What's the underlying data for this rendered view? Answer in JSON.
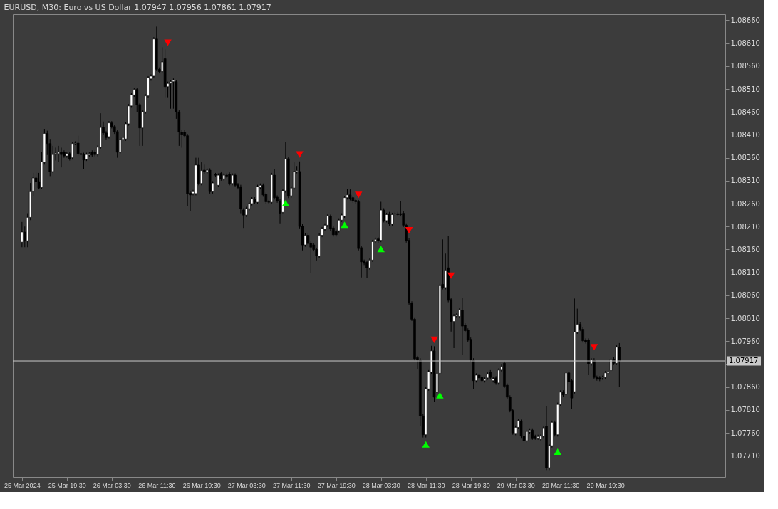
{
  "chart_data": {
    "type": "candlestick",
    "title": "EURUSD, M30:  Euro vs US Dollar  1.07947 1.07956 1.07861 1.07917",
    "x": [
      "2024-03-25T11:30",
      "2024-03-25T12:00",
      "2024-03-25T12:30",
      "2024-03-25T13:00",
      "2024-03-25T13:30",
      "2024-03-25T14:00",
      "2024-03-25T14:30",
      "2024-03-25T15:00",
      "2024-03-25T15:30",
      "2024-03-25T16:00",
      "2024-03-25T16:30",
      "2024-03-25T17:00",
      "2024-03-25T17:30",
      "2024-03-25T18:00",
      "2024-03-25T18:30",
      "2024-03-25T19:00",
      "2024-03-25T19:30",
      "2024-03-25T20:00",
      "2024-03-25T20:30",
      "2024-03-25T21:00",
      "2024-03-25T21:30",
      "2024-03-25T22:00",
      "2024-03-25T22:30",
      "2024-03-25T23:00",
      "2024-03-25T23:30",
      "2024-03-26T00:00",
      "2024-03-26T00:30",
      "2024-03-26T01:00",
      "2024-03-26T01:30",
      "2024-03-26T02:00",
      "2024-03-26T02:30",
      "2024-03-26T03:00",
      "2024-03-26T03:30",
      "2024-03-26T04:00",
      "2024-03-26T04:30",
      "2024-03-26T05:00",
      "2024-03-26T05:30",
      "2024-03-26T06:00",
      "2024-03-26T06:30",
      "2024-03-26T07:00",
      "2024-03-26T07:30",
      "2024-03-26T08:00",
      "2024-03-26T08:30",
      "2024-03-26T09:00",
      "2024-03-26T09:30",
      "2024-03-26T10:00",
      "2024-03-26T10:30",
      "2024-03-26T11:00",
      "2024-03-26T11:30",
      "2024-03-26T12:00",
      "2024-03-26T12:30",
      "2024-03-26T13:00",
      "2024-03-26T13:30",
      "2024-03-26T14:00",
      "2024-03-26T14:30",
      "2024-03-26T15:00",
      "2024-03-26T15:30",
      "2024-03-26T16:00",
      "2024-03-26T16:30",
      "2024-03-26T17:00",
      "2024-03-26T17:30",
      "2024-03-26T18:00",
      "2024-03-26T18:30",
      "2024-03-26T19:00",
      "2024-03-26T19:30",
      "2024-03-26T20:00",
      "2024-03-26T20:30",
      "2024-03-26T21:00",
      "2024-03-26T21:30",
      "2024-03-26T22:00",
      "2024-03-26T22:30",
      "2024-03-26T23:00",
      "2024-03-26T23:30",
      "2024-03-27T00:00",
      "2024-03-27T00:30",
      "2024-03-27T01:00",
      "2024-03-27T01:30",
      "2024-03-27T02:00",
      "2024-03-27T02:30",
      "2024-03-27T03:00",
      "2024-03-27T03:30",
      "2024-03-27T04:00",
      "2024-03-27T04:30",
      "2024-03-27T05:00",
      "2024-03-27T05:30",
      "2024-03-27T06:00",
      "2024-03-27T06:30",
      "2024-03-27T07:00",
      "2024-03-27T07:30",
      "2024-03-27T08:00",
      "2024-03-27T08:30",
      "2024-03-27T09:00",
      "2024-03-27T09:30",
      "2024-03-27T10:00",
      "2024-03-27T10:30",
      "2024-03-27T11:00",
      "2024-03-27T11:30",
      "2024-03-27T12:00",
      "2024-03-27T12:30",
      "2024-03-27T13:00",
      "2024-03-27T13:30",
      "2024-03-27T14:00",
      "2024-03-27T14:30",
      "2024-03-27T15:00",
      "2024-03-27T15:30",
      "2024-03-27T16:00",
      "2024-03-27T16:30",
      "2024-03-27T17:00",
      "2024-03-27T17:30",
      "2024-03-27T18:00",
      "2024-03-27T18:30",
      "2024-03-27T19:00",
      "2024-03-27T19:30",
      "2024-03-27T20:00",
      "2024-03-27T20:30",
      "2024-03-27T21:00",
      "2024-03-27T21:30",
      "2024-03-27T22:00",
      "2024-03-27T22:30",
      "2024-03-27T23:00",
      "2024-03-27T23:30",
      "2024-03-28T00:00",
      "2024-03-28T00:30",
      "2024-03-28T01:00",
      "2024-03-28T01:30",
      "2024-03-28T02:00",
      "2024-03-28T02:30",
      "2024-03-28T03:00",
      "2024-03-28T03:30",
      "2024-03-28T04:00",
      "2024-03-28T04:30",
      "2024-03-28T05:00",
      "2024-03-28T05:30",
      "2024-03-28T06:00",
      "2024-03-28T06:30",
      "2024-03-28T07:00",
      "2024-03-28T07:30",
      "2024-03-28T08:00",
      "2024-03-28T08:30",
      "2024-03-28T09:00",
      "2024-03-28T09:30",
      "2024-03-28T10:00",
      "2024-03-28T10:30",
      "2024-03-28T11:00",
      "2024-03-28T11:30",
      "2024-03-28T12:00",
      "2024-03-28T12:30",
      "2024-03-28T13:00",
      "2024-03-28T13:30",
      "2024-03-28T14:00",
      "2024-03-28T14:30",
      "2024-03-28T15:00",
      "2024-03-28T15:30",
      "2024-03-28T16:00",
      "2024-03-28T16:30",
      "2024-03-28T17:00",
      "2024-03-28T17:30",
      "2024-03-28T18:00",
      "2024-03-28T18:30",
      "2024-03-28T19:00",
      "2024-03-28T19:30",
      "2024-03-28T20:00",
      "2024-03-28T20:30",
      "2024-03-28T21:00",
      "2024-03-28T21:30",
      "2024-03-28T22:00",
      "2024-03-28T22:30",
      "2024-03-28T23:00",
      "2024-03-28T23:30",
      "2024-03-29T00:00",
      "2024-03-29T00:30",
      "2024-03-29T01:00",
      "2024-03-29T01:30",
      "2024-03-29T02:00",
      "2024-03-29T02:30",
      "2024-03-29T03:00",
      "2024-03-29T03:30",
      "2024-03-29T04:00",
      "2024-03-29T04:30",
      "2024-03-29T05:00",
      "2024-03-29T05:30",
      "2024-03-29T06:00",
      "2024-03-29T06:30",
      "2024-03-29T07:00",
      "2024-03-29T07:30",
      "2024-03-29T08:00",
      "2024-03-29T08:30",
      "2024-03-29T09:00",
      "2024-03-29T09:30",
      "2024-03-29T10:00",
      "2024-03-29T10:30",
      "2024-03-29T11:00",
      "2024-03-29T11:30",
      "2024-03-29T12:00",
      "2024-03-29T12:30",
      "2024-03-29T13:00",
      "2024-03-29T13:30",
      "2024-03-29T14:00",
      "2024-03-29T14:30",
      "2024-03-29T15:00",
      "2024-03-29T15:30",
      "2024-03-29T16:00",
      "2024-03-29T16:30",
      "2024-03-29T17:00",
      "2024-03-29T17:30",
      "2024-03-29T18:00",
      "2024-03-29T18:30",
      "2024-03-29T19:00",
      "2024-03-29T19:30",
      "2024-03-29T20:00",
      "2024-03-29T20:30",
      "2024-03-29T21:00",
      "2024-03-29T21:30",
      "2024-03-29T22:00"
    ],
    "ohlc": [
      [
        1.08176,
        1.0822,
        1.08165,
        1.08198
      ],
      [
        1.08198,
        1.0821,
        1.08165,
        1.0818
      ],
      [
        1.08179,
        1.08239,
        1.08165,
        1.0823
      ],
      [
        1.0823,
        1.08305,
        1.08224,
        1.08286
      ],
      [
        1.08286,
        1.08327,
        1.08276,
        1.08316
      ],
      [
        1.08316,
        1.0833,
        1.08295,
        1.08308
      ],
      [
        1.08308,
        1.08327,
        1.08291,
        1.08294
      ],
      [
        1.08295,
        1.08372,
        1.08292,
        1.08351
      ],
      [
        1.0835,
        1.08423,
        1.08345,
        1.08413
      ],
      [
        1.08413,
        1.08419,
        1.08366,
        1.08391
      ],
      [
        1.08391,
        1.08401,
        1.0832,
        1.0833
      ],
      [
        1.0833,
        1.08386,
        1.08327,
        1.08367
      ],
      [
        1.08367,
        1.08382,
        1.08354,
        1.0837
      ],
      [
        1.08369,
        1.08386,
        1.08351,
        1.08372
      ],
      [
        1.08372,
        1.08382,
        1.08339,
        1.08367
      ],
      [
        1.08372,
        1.08376,
        1.0836,
        1.08364
      ],
      [
        1.08364,
        1.08373,
        1.0836,
        1.08369
      ],
      [
        1.08369,
        1.08373,
        1.08354,
        1.08358
      ],
      [
        1.0836,
        1.08394,
        1.08356,
        1.08391
      ],
      [
        1.08391,
        1.08396,
        1.08388,
        1.08392
      ],
      [
        1.08392,
        1.08408,
        1.08365,
        1.08369
      ],
      [
        1.08369,
        1.08373,
        1.08363,
        1.08367
      ],
      [
        1.08367,
        1.08371,
        1.08335,
        1.08355
      ],
      [
        1.08357,
        1.08371,
        1.08353,
        1.08367
      ],
      [
        1.08366,
        1.08373,
        1.08362,
        1.08369
      ],
      [
        1.08372,
        1.08376,
        1.08362,
        1.08366
      ],
      [
        1.08372,
        1.08376,
        1.08363,
        1.08367
      ],
      [
        1.08367,
        1.08387,
        1.08363,
        1.08383
      ],
      [
        1.08383,
        1.08457,
        1.08379,
        1.08426
      ],
      [
        1.08426,
        1.08439,
        1.0841,
        1.08414
      ],
      [
        1.08414,
        1.08418,
        1.084,
        1.08404
      ],
      [
        1.08406,
        1.0844,
        1.08402,
        1.08436
      ],
      [
        1.08436,
        1.0844,
        1.08424,
        1.08428
      ],
      [
        1.08428,
        1.08432,
        1.08412,
        1.08416
      ],
      [
        1.08417,
        1.08421,
        1.0836,
        1.08372
      ],
      [
        1.08372,
        1.08404,
        1.08368,
        1.084
      ],
      [
        1.084,
        1.08408,
        1.08396,
        1.08404
      ],
      [
        1.08401,
        1.08438,
        1.08397,
        1.08434
      ],
      [
        1.08434,
        1.08477,
        1.0843,
        1.08473
      ],
      [
        1.08473,
        1.08501,
        1.08469,
        1.08497
      ],
      [
        1.08497,
        1.08513,
        1.08493,
        1.08509
      ],
      [
        1.08509,
        1.08513,
        1.0846,
        1.08475
      ],
      [
        1.08476,
        1.0848,
        1.08386,
        1.08425
      ],
      [
        1.08425,
        1.08464,
        1.08386,
        1.0846
      ],
      [
        1.0846,
        1.08499,
        1.08456,
        1.08495
      ],
      [
        1.08495,
        1.08538,
        1.08491,
        1.08534
      ],
      [
        1.08532,
        1.08542,
        1.08528,
        1.08538
      ],
      [
        1.08538,
        1.08623,
        1.08534,
        1.08619
      ],
      [
        1.08619,
        1.08646,
        1.08549,
        1.08553
      ],
      [
        1.08553,
        1.08557,
        1.08544,
        1.08548
      ],
      [
        1.08548,
        1.08601,
        1.08544,
        1.08569
      ],
      [
        1.08576,
        1.08596,
        1.08492,
        1.08515
      ],
      [
        1.08515,
        1.08526,
        1.08492,
        1.08522
      ],
      [
        1.08522,
        1.0853,
        1.08467,
        1.08526
      ],
      [
        1.08526,
        1.08533,
        1.08467,
        1.08529
      ],
      [
        1.08526,
        1.0853,
        1.08445,
        1.0846
      ],
      [
        1.0846,
        1.08464,
        1.08386,
        1.08416
      ],
      [
        1.08416,
        1.0842,
        1.08382,
        1.08411
      ],
      [
        1.08416,
        1.0842,
        1.08404,
        1.08408
      ],
      [
        1.08408,
        1.08412,
        1.08254,
        1.08282
      ],
      [
        1.08283,
        1.08287,
        1.08244,
        1.08279
      ],
      [
        1.08282,
        1.0829,
        1.08278,
        1.08286
      ],
      [
        1.08282,
        1.0836,
        1.08278,
        1.08344
      ],
      [
        1.08344,
        1.0836,
        1.083,
        1.08304
      ],
      [
        1.08304,
        1.0835,
        1.083,
        1.08332
      ],
      [
        1.08333,
        1.08345,
        1.08325,
        1.08329
      ],
      [
        1.08329,
        1.08337,
        1.08325,
        1.08333
      ],
      [
        1.08333,
        1.08337,
        1.08282,
        1.08286
      ],
      [
        1.08286,
        1.08309,
        1.08282,
        1.08305
      ],
      [
        1.08323,
        1.08327,
        1.08318,
        1.08322
      ],
      [
        1.083,
        1.08326,
        1.08296,
        1.08322
      ],
      [
        1.08326,
        1.0833,
        1.0831,
        1.08314
      ],
      [
        1.08314,
        1.08326,
        1.0831,
        1.08322
      ],
      [
        1.08322,
        1.08326,
        1.08316,
        1.0832
      ],
      [
        1.08324,
        1.08328,
        1.083,
        1.08304
      ],
      [
        1.08304,
        1.08326,
        1.083,
        1.08322
      ],
      [
        1.08322,
        1.08326,
        1.08296,
        1.083
      ],
      [
        1.08301,
        1.08305,
        1.08291,
        1.08295
      ],
      [
        1.08297,
        1.08301,
        1.08239,
        1.08249
      ],
      [
        1.08246,
        1.0825,
        1.08207,
        1.08235
      ],
      [
        1.08235,
        1.08253,
        1.08231,
        1.08249
      ],
      [
        1.08249,
        1.08264,
        1.08245,
        1.0826
      ],
      [
        1.0826,
        1.08274,
        1.08256,
        1.0827
      ],
      [
        1.0827,
        1.08274,
        1.08259,
        1.08263
      ],
      [
        1.08263,
        1.08301,
        1.08259,
        1.08297
      ],
      [
        1.08295,
        1.08304,
        1.08291,
        1.083
      ],
      [
        1.083,
        1.08304,
        1.08275,
        1.08279
      ],
      [
        1.0828,
        1.08284,
        1.0826,
        1.08264
      ],
      [
        1.08264,
        1.08268,
        1.08259,
        1.08263
      ],
      [
        1.08263,
        1.08327,
        1.08259,
        1.08323
      ],
      [
        1.08322,
        1.08335,
        1.08269,
        1.08273
      ],
      [
        1.08274,
        1.08278,
        1.08262,
        1.08266
      ],
      [
        1.08266,
        1.0827,
        1.08217,
        1.08239
      ],
      [
        1.08241,
        1.08292,
        1.08239,
        1.08288
      ],
      [
        1.08288,
        1.08394,
        1.08284,
        1.08358
      ],
      [
        1.08358,
        1.08362,
        1.08272,
        1.08276
      ],
      [
        1.08277,
        1.08298,
        1.08273,
        1.08294
      ],
      [
        1.08294,
        1.0835,
        1.0829,
        1.0833
      ],
      [
        1.0833,
        1.08342,
        1.08326,
        1.08332
      ],
      [
        1.0833,
        1.08352,
        1.08206,
        1.0821
      ],
      [
        1.08211,
        1.08215,
        1.08158,
        1.0817
      ],
      [
        1.0817,
        1.08195,
        1.08166,
        1.08191
      ],
      [
        1.08191,
        1.08195,
        1.08169,
        1.08173
      ],
      [
        1.08174,
        1.08178,
        1.08109,
        1.08165
      ],
      [
        1.0817,
        1.08174,
        1.08156,
        1.0816
      ],
      [
        1.0816,
        1.08164,
        1.08136,
        1.08146
      ],
      [
        1.08146,
        1.08195,
        1.08142,
        1.08191
      ],
      [
        1.08191,
        1.08209,
        1.08187,
        1.08205
      ],
      [
        1.08205,
        1.08217,
        1.08201,
        1.08213
      ],
      [
        1.08213,
        1.08237,
        1.08209,
        1.08233
      ],
      [
        1.08232,
        1.08236,
        1.08201,
        1.08205
      ],
      [
        1.08207,
        1.08211,
        1.08188,
        1.08192
      ],
      [
        1.08199,
        1.08203,
        1.08188,
        1.08192
      ],
      [
        1.08201,
        1.08228,
        1.08197,
        1.08224
      ],
      [
        1.08224,
        1.08239,
        1.0822,
        1.08235
      ],
      [
        1.08233,
        1.08277,
        1.08229,
        1.08273
      ],
      [
        1.08273,
        1.08292,
        1.08269,
        1.08279
      ],
      [
        1.08279,
        1.08291,
        1.08267,
        1.08271
      ],
      [
        1.08273,
        1.08277,
        1.08262,
        1.08266
      ],
      [
        1.08267,
        1.08271,
        1.0826,
        1.08264
      ],
      [
        1.08264,
        1.08268,
        1.08158,
        1.08162
      ],
      [
        1.08164,
        1.08168,
        1.08099,
        1.08133
      ],
      [
        1.08134,
        1.08138,
        1.08126,
        1.0813
      ],
      [
        1.08132,
        1.08136,
        1.08098,
        1.0812
      ],
      [
        1.0812,
        1.08141,
        1.08116,
        1.08137
      ],
      [
        1.08137,
        1.08181,
        1.08133,
        1.08177
      ],
      [
        1.08177,
        1.08186,
        1.08173,
        1.08182
      ],
      [
        1.08183,
        1.08187,
        1.08175,
        1.08179
      ],
      [
        1.0818,
        1.08264,
        1.08176,
        1.08246
      ],
      [
        1.08246,
        1.0825,
        1.08219,
        1.08223
      ],
      [
        1.08223,
        1.0824,
        1.08219,
        1.08236
      ],
      [
        1.08238,
        1.08242,
        1.08212,
        1.08216
      ],
      [
        1.08216,
        1.0824,
        1.08212,
        1.08236
      ],
      [
        1.08236,
        1.08242,
        1.08232,
        1.08238
      ],
      [
        1.08238,
        1.08242,
        1.08232,
        1.08236
      ],
      [
        1.08238,
        1.08266,
        1.08232,
        1.08236
      ],
      [
        1.08239,
        1.08243,
        1.08209,
        1.08213
      ],
      [
        1.08213,
        1.08217,
        1.08175,
        1.08179
      ],
      [
        1.0818,
        1.08184,
        1.08039,
        1.08043
      ],
      [
        1.08043,
        1.08047,
        1.08004,
        1.08008
      ],
      [
        1.08008,
        1.08012,
        1.07918,
        1.07922
      ],
      [
        1.07924,
        1.07928,
        1.079,
        1.07919
      ],
      [
        1.07919,
        1.07923,
        1.07775,
        1.07797
      ],
      [
        1.07797,
        1.07801,
        1.0775,
        1.07756
      ],
      [
        1.07756,
        1.0786,
        1.0775,
        1.07856
      ],
      [
        1.07856,
        1.07897,
        1.07852,
        1.07893
      ],
      [
        1.07893,
        1.0795,
        1.07889,
        1.07939
      ],
      [
        1.07939,
        1.07949,
        1.07827,
        1.07838
      ],
      [
        1.07849,
        1.079,
        1.07845,
        1.0789
      ],
      [
        1.0789,
        1.08085,
        1.07886,
        1.08081
      ],
      [
        1.08084,
        1.08182,
        1.08073,
        1.08077
      ],
      [
        1.08077,
        1.08151,
        1.08073,
        1.08115
      ],
      [
        1.0812,
        1.08189,
        1.08045,
        1.08049
      ],
      [
        1.08051,
        1.08055,
        1.07981,
        1.08003
      ],
      [
        1.08003,
        1.08019,
        1.07945,
        1.08015
      ],
      [
        1.08015,
        1.08022,
        1.08011,
        1.08018
      ],
      [
        1.08014,
        1.08032,
        1.0801,
        1.08028
      ],
      [
        1.08028,
        1.08055,
        1.0793,
        1.07993
      ],
      [
        1.07995,
        1.07999,
        1.07979,
        1.07983
      ],
      [
        1.07984,
        1.07988,
        1.07958,
        1.07962
      ],
      [
        1.07964,
        1.07968,
        1.07915,
        1.07919
      ],
      [
        1.07919,
        1.07923,
        1.07856,
        1.07874
      ],
      [
        1.07874,
        1.0789,
        1.0787,
        1.07886
      ],
      [
        1.07886,
        1.0789,
        1.07876,
        1.0788
      ],
      [
        1.07881,
        1.07885,
        1.0787,
        1.07874
      ],
      [
        1.07874,
        1.07881,
        1.0787,
        1.07877
      ],
      [
        1.0788,
        1.07892,
        1.07876,
        1.07888
      ],
      [
        1.07893,
        1.07897,
        1.07877,
        1.07881
      ],
      [
        1.07874,
        1.07882,
        1.0787,
        1.07878
      ],
      [
        1.0788,
        1.07884,
        1.07865,
        1.07869
      ],
      [
        1.07869,
        1.07901,
        1.07865,
        1.07897
      ],
      [
        1.07897,
        1.07909,
        1.07893,
        1.07905
      ],
      [
        1.07912,
        1.07916,
        1.07858,
        1.07862
      ],
      [
        1.07864,
        1.07868,
        1.07834,
        1.07838
      ],
      [
        1.07838,
        1.07842,
        1.07805,
        1.07809
      ],
      [
        1.07809,
        1.07813,
        1.07756,
        1.0776
      ],
      [
        1.07759,
        1.07776,
        1.07755,
        1.07772
      ],
      [
        1.07772,
        1.07791,
        1.07768,
        1.07787
      ],
      [
        1.07785,
        1.07789,
        1.07749,
        1.07753
      ],
      [
        1.07753,
        1.07757,
        1.07739,
        1.07743
      ],
      [
        1.07743,
        1.07767,
        1.07739,
        1.07763
      ],
      [
        1.07762,
        1.0777,
        1.07758,
        1.07766
      ],
      [
        1.07766,
        1.0777,
        1.07745,
        1.07749
      ],
      [
        1.07752,
        1.07756,
        1.07745,
        1.07749
      ],
      [
        1.07749,
        1.07756,
        1.07745,
        1.07752
      ],
      [
        1.07747,
        1.07757,
        1.07743,
        1.07753
      ],
      [
        1.07753,
        1.07775,
        1.07749,
        1.07771
      ],
      [
        1.07774,
        1.07818,
        1.07679,
        1.07684
      ],
      [
        1.07684,
        1.07736,
        1.07679,
        1.07732
      ],
      [
        1.07732,
        1.07787,
        1.07728,
        1.07783
      ],
      [
        1.07783,
        1.07787,
        1.07752,
        1.07756
      ],
      [
        1.07756,
        1.07826,
        1.07752,
        1.07822
      ],
      [
        1.07822,
        1.07853,
        1.07818,
        1.07849
      ],
      [
        1.07849,
        1.07853,
        1.07839,
        1.07843
      ],
      [
        1.07844,
        1.07895,
        1.0784,
        1.07891
      ],
      [
        1.07891,
        1.07895,
        1.07868,
        1.07872
      ],
      [
        1.07874,
        1.07878,
        1.07812,
        1.07836
      ],
      [
        1.0785,
        1.08053,
        1.07846,
        1.0798
      ],
      [
        1.0798,
        1.08031,
        1.07976,
        1.07997
      ],
      [
        1.07997,
        1.08001,
        1.07982,
        1.07986
      ],
      [
        1.07986,
        1.0799,
        1.07957,
        1.07961
      ],
      [
        1.07962,
        1.07966,
        1.07955,
        1.07959
      ],
      [
        1.07962,
        1.07966,
        1.07886,
        1.07911
      ],
      [
        1.07911,
        1.07923,
        1.07907,
        1.07919
      ],
      [
        1.07919,
        1.07923,
        1.07877,
        1.07881
      ],
      [
        1.07881,
        1.07885,
        1.07874,
        1.07878
      ],
      [
        1.0788,
        1.07884,
        1.07873,
        1.07877
      ],
      [
        1.0788,
        1.07885,
        1.07876,
        1.07881
      ],
      [
        1.07881,
        1.07895,
        1.07877,
        1.07891
      ],
      [
        1.0789,
        1.07897,
        1.07886,
        1.07893
      ],
      [
        1.07896,
        1.07925,
        1.07892,
        1.07921
      ],
      [
        1.07921,
        1.07925,
        1.07908,
        1.07912
      ],
      [
        1.07912,
        1.07951,
        1.07908,
        1.07947
      ],
      [
        1.07947,
        1.07956,
        1.07861,
        1.07917
      ]
    ],
    "series": [
      {
        "type": "scatter",
        "color": "#ff0000",
        "marker": "triangle-down",
        "x": [
          "2024-03-26T13:30",
          "2024-03-27T13:00",
          "2024-03-27T23:30",
          "2024-03-28T08:30",
          "2024-03-28T13:00",
          "2024-03-28T16:00",
          "2024-03-29T17:30"
        ],
        "values": [
          1.08611,
          1.08367,
          1.08279,
          1.08202,
          1.07963,
          1.08103,
          1.07947
        ]
      },
      {
        "type": "scatter",
        "color": "#00ff00",
        "marker": "triangle",
        "x": [
          "2024-03-27T10:30",
          "2024-03-27T21:00",
          "2024-03-28T03:30",
          "2024-03-28T11:30",
          "2024-03-28T14:00",
          "2024-03-29T11:00"
        ],
        "values": [
          1.08261,
          1.08214,
          1.08161,
          1.07735,
          1.07842,
          1.07719
        ]
      }
    ],
    "xlim": [
      "2024-03-25T10:30",
      "2024-03-30T16:15"
    ],
    "xticks": [
      {
        "value": "2024-03-25T11:30",
        "label": "25 Mar 2024"
      },
      {
        "value": "2024-03-25T19:30",
        "label": "25 Mar 19:30"
      },
      {
        "value": "2024-03-26T03:30",
        "label": "26 Mar 03:30"
      },
      {
        "value": "2024-03-26T11:30",
        "label": "26 Mar 11:30"
      },
      {
        "value": "2024-03-26T19:30",
        "label": "26 Mar 19:30"
      },
      {
        "value": "2024-03-27T03:30",
        "label": "27 Mar 03:30"
      },
      {
        "value": "2024-03-27T11:30",
        "label": "27 Mar 11:30"
      },
      {
        "value": "2024-03-27T19:30",
        "label": "27 Mar 19:30"
      },
      {
        "value": "2024-03-28T03:30",
        "label": "28 Mar 03:30"
      },
      {
        "value": "2024-03-28T11:30",
        "label": "28 Mar 11:30"
      },
      {
        "value": "2024-03-28T19:30",
        "label": "28 Mar 19:30"
      },
      {
        "value": "2024-03-29T03:30",
        "label": "29 Mar 03:30"
      },
      {
        "value": "2024-03-29T11:30",
        "label": "29 Mar 11:30"
      },
      {
        "value": "2024-03-29T19:30",
        "label": "29 Mar 19:30"
      }
    ],
    "ylim": [
      1.07664,
      1.08673
    ],
    "yticks": [
      {
        "value": 1.0771,
        "label": "1.07710"
      },
      {
        "value": 1.0776,
        "label": "1.07760"
      },
      {
        "value": 1.0781,
        "label": "1.07810"
      },
      {
        "value": 1.0786,
        "label": "1.07860"
      },
      {
        "value": 1.0791,
        "label": null
      },
      {
        "value": 1.0796,
        "label": "1.07960"
      },
      {
        "value": 1.0801,
        "label": "1.08010"
      },
      {
        "value": 1.0806,
        "label": "1.08060"
      },
      {
        "value": 1.0811,
        "label": "1.08110"
      },
      {
        "value": 1.0816,
        "label": "1.08160"
      },
      {
        "value": 1.0821,
        "label": "1.08210"
      },
      {
        "value": 1.0826,
        "label": "1.08260"
      },
      {
        "value": 1.0831,
        "label": "1.08310"
      },
      {
        "value": 1.0836,
        "label": "1.08360"
      },
      {
        "value": 1.0841,
        "label": "1.08410"
      },
      {
        "value": 1.0846,
        "label": "1.08460"
      },
      {
        "value": 1.0851,
        "label": "1.08510"
      },
      {
        "value": 1.0856,
        "label": "1.08560"
      },
      {
        "value": 1.0861,
        "label": "1.08610"
      },
      {
        "value": 1.0866,
        "label": "1.08660"
      }
    ],
    "ref_lines": [
      {
        "axis": "y",
        "value": 1.07917,
        "label": "1.07917",
        "color": "#c8c8c8"
      }
    ],
    "grid": false
  }
}
